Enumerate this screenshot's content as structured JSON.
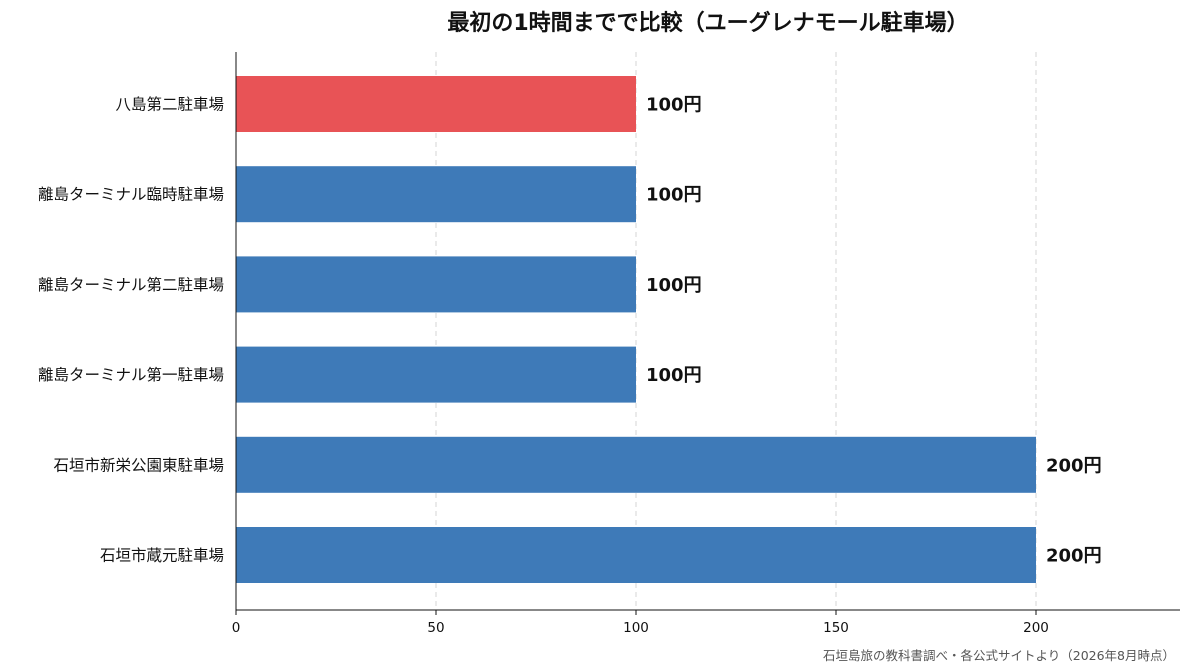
{
  "chart_data": {
    "type": "bar",
    "orientation": "horizontal",
    "title": "最初の1時間までで比較（ユーグレナモール駐車場）",
    "categories": [
      "八島第二駐車場",
      "離島ターミナル臨時駐車場",
      "離島ターミナル第二駐車場",
      "離島ターミナル第一駐車場",
      "石垣市新栄公園東駐車場",
      "石垣市蔵元駐車場"
    ],
    "values": [
      100,
      100,
      100,
      100,
      200,
      200
    ],
    "value_labels": [
      "100円",
      "100円",
      "100円",
      "100円",
      "200円",
      "200円"
    ],
    "bar_colors": [
      "#e85356",
      "#3e7ab8",
      "#3e7ab8",
      "#3e7ab8",
      "#3e7ab8",
      "#3e7ab8"
    ],
    "xlim": [
      0,
      236
    ],
    "x_ticks": [
      0,
      50,
      100,
      150,
      200
    ],
    "grid": "vertical dashed",
    "xlabel": "",
    "ylabel": ""
  },
  "source_note": "石垣島旅の教科書調べ・各公式サイトより（2026年8月時点）"
}
